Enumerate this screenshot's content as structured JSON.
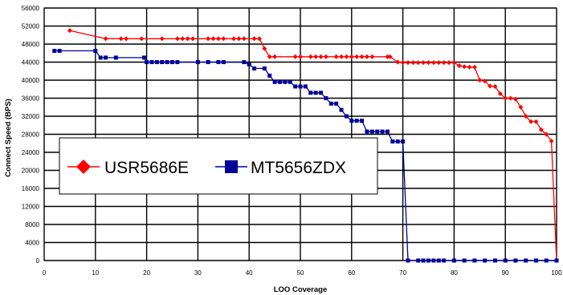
{
  "chart_data": {
    "type": "line",
    "title": "",
    "xlabel": "LOO Coverage",
    "ylabel": "Connect Speed (BPS)",
    "xlim": [
      0,
      100
    ],
    "ylim": [
      0,
      56000
    ],
    "xticks": [
      "0",
      "10",
      "20",
      "30",
      "40",
      "50",
      "60",
      "70",
      "80",
      "90",
      "100"
    ],
    "yticks": [
      "0",
      "4000",
      "8000",
      "12000",
      "16000",
      "20000",
      "24000",
      "28000",
      "32000",
      "36000",
      "40000",
      "44000",
      "48000",
      "52000",
      "56000"
    ],
    "grid": true,
    "legend_position": "center-left",
    "series": [
      {
        "name": "USR5686E",
        "color": "#ff0000",
        "marker": "diamond",
        "x": [
          5,
          12,
          15,
          16,
          19,
          23,
          26,
          27,
          28,
          29,
          32,
          33,
          34,
          35,
          37,
          38,
          39,
          41,
          42,
          43,
          44,
          45,
          49,
          50,
          52,
          53,
          54,
          55,
          57,
          58,
          59,
          60,
          61,
          62,
          63,
          64,
          67,
          67.5,
          69,
          70,
          71,
          72,
          73,
          74,
          75,
          76,
          77,
          78,
          79,
          80,
          81,
          82,
          83,
          84,
          85,
          86,
          87,
          88,
          89,
          90,
          91,
          92,
          93,
          94,
          95,
          96,
          97,
          98,
          99,
          100
        ],
        "y": [
          51000,
          49200,
          49200,
          49200,
          49200,
          49200,
          49200,
          49200,
          49200,
          49200,
          49200,
          49200,
          49200,
          49200,
          49200,
          49200,
          49200,
          49200,
          49200,
          47000,
          45200,
          45200,
          45200,
          45200,
          45200,
          45200,
          45200,
          45200,
          45200,
          45200,
          45200,
          45200,
          45200,
          45200,
          45200,
          45200,
          45200,
          45200,
          44000,
          43900,
          43900,
          43900,
          43900,
          43900,
          43900,
          43900,
          43900,
          43900,
          43900,
          43900,
          43200,
          43000,
          42900,
          42900,
          40000,
          39800,
          38700,
          38600,
          37000,
          36000,
          36000,
          35800,
          34000,
          32000,
          30800,
          30800,
          29000,
          28000,
          26500,
          0
        ]
      },
      {
        "name": "MT5656ZDX",
        "color": "#000099",
        "marker": "square",
        "x": [
          2,
          3,
          10,
          11,
          12,
          14,
          19.5,
          20,
          21,
          22,
          23,
          24,
          25,
          26,
          30,
          32,
          34,
          35,
          39,
          40,
          41,
          43,
          44,
          45,
          46,
          47,
          48,
          49,
          50,
          51,
          52,
          53,
          54,
          55,
          56,
          57,
          58,
          59,
          60,
          61,
          62,
          63,
          64,
          65,
          66,
          67,
          68,
          69,
          70,
          71,
          73,
          74,
          75,
          76,
          77,
          78,
          80,
          82,
          84,
          86,
          88,
          90,
          92,
          94,
          96,
          98,
          100
        ],
        "y": [
          46500,
          46500,
          46500,
          45000,
          45000,
          45000,
          45000,
          44000,
          44000,
          44000,
          44000,
          44000,
          44000,
          44000,
          44000,
          44000,
          44000,
          44000,
          44000,
          43500,
          42600,
          42600,
          41000,
          39600,
          39600,
          39600,
          39600,
          38600,
          38600,
          38600,
          37200,
          37200,
          37200,
          36000,
          34800,
          34800,
          33400,
          32000,
          31000,
          31000,
          31000,
          28600,
          28600,
          28600,
          28600,
          28600,
          26400,
          26400,
          26400,
          0,
          0,
          0,
          0,
          0,
          0,
          0,
          0,
          0,
          0,
          0,
          0,
          0,
          0,
          0,
          0,
          0,
          0
        ]
      }
    ]
  }
}
